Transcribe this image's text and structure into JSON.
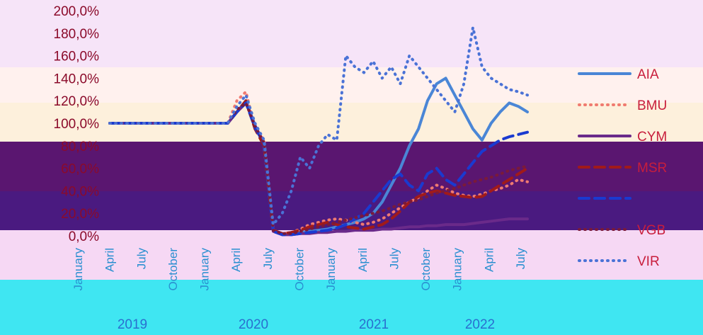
{
  "chart_data": {
    "type": "line",
    "title": "",
    "xlabel": "",
    "ylabel": "",
    "ylim": [
      0,
      200
    ],
    "y_ticks": [
      "0,0%",
      "20,0%",
      "40,0%",
      "60,0%",
      "80,0%",
      "100,0%",
      "120,0%",
      "140,0%",
      "160,0%",
      "180,0%",
      "200,0%"
    ],
    "x_ticks": [
      "January",
      "April",
      "July",
      "October",
      "January",
      "April",
      "July",
      "October",
      "January",
      "April",
      "July",
      "October",
      "January",
      "April",
      "July"
    ],
    "year_labels": [
      "2019",
      "2020",
      "2021",
      "2022"
    ],
    "legend_position": "right",
    "grid": false,
    "series": [
      {
        "name": "AIA",
        "color": "#4a86d6",
        "dash": "solid",
        "values": [
          100,
          100,
          100,
          100,
          100,
          100,
          100,
          100,
          100,
          100,
          100,
          100,
          100,
          100,
          110,
          120,
          98,
          80,
          5,
          2,
          2,
          3,
          4,
          5,
          6,
          8,
          10,
          12,
          15,
          20,
          30,
          45,
          60,
          80,
          95,
          120,
          135,
          140,
          125,
          110,
          95,
          85,
          100,
          110,
          118,
          115,
          110
        ]
      },
      {
        "name": "BMU",
        "color": "#f07a70",
        "dash": "dot",
        "values": [
          100,
          100,
          100,
          100,
          100,
          100,
          100,
          100,
          100,
          100,
          100,
          100,
          100,
          100,
          120,
          128,
          95,
          85,
          5,
          2,
          3,
          6,
          10,
          12,
          14,
          15,
          14,
          12,
          10,
          12,
          15,
          20,
          25,
          30,
          34,
          40,
          45,
          42,
          38,
          36,
          35,
          37,
          40,
          42,
          45,
          50,
          48
        ]
      },
      {
        "name": "CYM",
        "color": "#6a2a8a",
        "dash": "solid",
        "values": [
          100,
          100,
          100,
          100,
          100,
          100,
          100,
          100,
          100,
          100,
          100,
          100,
          100,
          100,
          110,
          118,
          98,
          82,
          4,
          1,
          1,
          2,
          2,
          3,
          3,
          4,
          4,
          5,
          5,
          5,
          6,
          6,
          7,
          8,
          8,
          9,
          9,
          10,
          10,
          10,
          11,
          12,
          13,
          14,
          15,
          15,
          15
        ]
      },
      {
        "name": "MSR",
        "color": "#a01a1a",
        "dash": "dash",
        "values": [
          100,
          100,
          100,
          100,
          100,
          100,
          100,
          100,
          100,
          100,
          100,
          100,
          100,
          100,
          110,
          120,
          95,
          80,
          5,
          2,
          3,
          5,
          8,
          10,
          12,
          10,
          8,
          7,
          6,
          8,
          10,
          15,
          22,
          30,
          35,
          38,
          40,
          38,
          36,
          35,
          34,
          35,
          40,
          45,
          50,
          55,
          60
        ]
      },
      {
        "name": "VGB",
        "color": "#1a3ad0",
        "dash": "dash",
        "values": [
          100,
          100,
          100,
          100,
          100,
          100,
          100,
          100,
          100,
          100,
          100,
          100,
          100,
          100,
          110,
          118,
          96,
          82,
          4,
          1,
          1,
          2,
          3,
          4,
          5,
          7,
          10,
          15,
          20,
          30,
          40,
          50,
          55,
          45,
          40,
          55,
          60,
          50,
          45,
          55,
          65,
          75,
          80,
          85,
          88,
          90,
          92
        ]
      },
      {
        "name": "VGB",
        "color": "#7a1a3a",
        "dash": "dot",
        "values": [
          100,
          100,
          100,
          100,
          100,
          100,
          100,
          100,
          100,
          100,
          100,
          100,
          100,
          100,
          112,
          118,
          97,
          83,
          5,
          2,
          2,
          4,
          6,
          8,
          10,
          12,
          14,
          16,
          18,
          20,
          22,
          25,
          28,
          30,
          32,
          35,
          38,
          40,
          42,
          45,
          48,
          50,
          52,
          55,
          58,
          60,
          62
        ]
      },
      {
        "name": "VIR",
        "color": "#4a72d6",
        "dash": "dot",
        "values": [
          100,
          100,
          100,
          100,
          100,
          100,
          100,
          100,
          100,
          100,
          100,
          100,
          100,
          100,
          115,
          125,
          100,
          85,
          10,
          20,
          40,
          70,
          60,
          80,
          90,
          85,
          160,
          150,
          145,
          155,
          140,
          150,
          135,
          160,
          150,
          140,
          130,
          120,
          110,
          135,
          185,
          150,
          140,
          135,
          130,
          128,
          125
        ]
      }
    ]
  },
  "legend": [
    {
      "label": "AIA",
      "color": "#4a86d6",
      "dash": "solid"
    },
    {
      "label": "BMU",
      "color": "#f07a70",
      "dash": "dot"
    },
    {
      "label": "CYM",
      "color": "#6a2a8a",
      "dash": "solid"
    },
    {
      "label": "MSR",
      "color": "#a01a1a",
      "dash": "dash"
    },
    {
      "label": "",
      "color": "#1a3ad0",
      "dash": "dash"
    },
    {
      "label": "VGB",
      "color": "#7a1a3a",
      "dash": "dot"
    },
    {
      "label": "VIR",
      "color": "#4a72d6",
      "dash": "dot"
    }
  ]
}
